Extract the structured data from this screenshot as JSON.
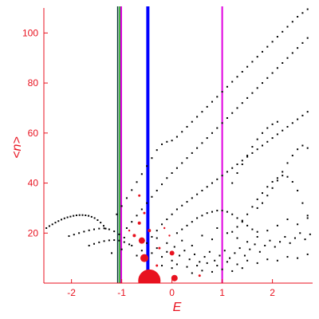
{
  "chart_data": {
    "type": "scatter",
    "xlabel": "E",
    "ylabel": "<n>",
    "xlim": [
      -2.55,
      2.8
    ],
    "ylim": [
      0,
      110
    ],
    "x_ticks": [
      -2,
      -1,
      0,
      1,
      2
    ],
    "y_ticks": [
      20,
      40,
      60,
      80,
      100
    ],
    "x_tick_labels": [
      "-2",
      "-1",
      "0",
      "1",
      "2"
    ],
    "y_tick_labels": [
      "20",
      "40",
      "60",
      "80",
      "100"
    ],
    "grid": false,
    "legend": "none",
    "colors": {
      "axis": "#e8121f",
      "points": "#000000",
      "markers": "#e8121f",
      "line_blue": "#0000ff",
      "line_magenta": "#e000e0",
      "line_green": "#00a000",
      "line_dark": "#003030"
    },
    "vertical_lines": [
      {
        "x": -1.08,
        "color": "#003030",
        "width": 1.5
      },
      {
        "x": -1.04,
        "color": "#00a000",
        "width": 1.5
      },
      {
        "x": -1.01,
        "color": "#e000e0",
        "width": 2
      },
      {
        "x": -0.48,
        "color": "#0000ff",
        "width": 4
      },
      {
        "x": 1.0,
        "color": "#e000e0",
        "width": 2
      }
    ],
    "series": [
      {
        "color": "#000000",
        "points": [
          [
            -2.5,
            22.0
          ],
          [
            -2.44,
            22.8
          ],
          [
            -2.38,
            23.5
          ],
          [
            -2.32,
            24.2
          ],
          [
            -2.26,
            24.8
          ],
          [
            -2.2,
            25.4
          ],
          [
            -2.14,
            25.9
          ],
          [
            -2.08,
            26.3
          ],
          [
            -2.02,
            26.6
          ],
          [
            -1.96,
            26.9
          ],
          [
            -1.9,
            27.1
          ],
          [
            -1.84,
            27.2
          ],
          [
            -1.78,
            27.2
          ],
          [
            -1.72,
            27.1
          ],
          [
            -1.66,
            26.9
          ],
          [
            -1.6,
            26.5
          ],
          [
            -1.54,
            26.0
          ],
          [
            -1.48,
            25.2
          ],
          [
            -1.42,
            24.2
          ],
          [
            -1.36,
            22.9
          ],
          [
            -1.32,
            21.8
          ],
          [
            -2.05,
            18.8
          ],
          [
            -1.95,
            19.4
          ],
          [
            -1.85,
            20.0
          ],
          [
            -1.75,
            20.6
          ],
          [
            -1.65,
            21.1
          ],
          [
            -1.55,
            21.5
          ],
          [
            -1.45,
            21.8
          ],
          [
            -1.35,
            21.9
          ],
          [
            -1.25,
            21.5
          ],
          [
            -1.15,
            20.7
          ],
          [
            -1.05,
            19.5
          ],
          [
            -0.95,
            18.2
          ],
          [
            -1.65,
            15.0
          ],
          [
            -1.55,
            15.7
          ],
          [
            -1.45,
            16.3
          ],
          [
            -1.35,
            16.8
          ],
          [
            -1.25,
            17.1
          ],
          [
            -1.15,
            17.2
          ],
          [
            -1.05,
            17.0
          ],
          [
            -0.95,
            16.4
          ],
          [
            -0.85,
            15.5
          ],
          [
            -1.1,
            27.5
          ],
          [
            -1.0,
            30.8
          ],
          [
            -0.9,
            34.0
          ],
          [
            -0.8,
            37.2
          ],
          [
            -0.7,
            40.4
          ],
          [
            -0.6,
            43.6
          ],
          [
            -0.5,
            46.8
          ],
          [
            -0.4,
            50.0
          ],
          [
            -0.3,
            53.2
          ],
          [
            -0.2,
            55.5
          ],
          [
            -0.1,
            56.5
          ],
          [
            0.0,
            57.0
          ],
          [
            0.1,
            58.5
          ],
          [
            0.2,
            60.5
          ],
          [
            0.3,
            62.5
          ],
          [
            0.4,
            64.5
          ],
          [
            0.5,
            66.5
          ],
          [
            0.6,
            68.5
          ],
          [
            0.7,
            70.5
          ],
          [
            0.8,
            72.5
          ],
          [
            0.9,
            74.5
          ],
          [
            1.0,
            76.5
          ],
          [
            1.1,
            78.5
          ],
          [
            1.2,
            80.5
          ],
          [
            1.3,
            82.5
          ],
          [
            1.4,
            84.5
          ],
          [
            1.5,
            86.5
          ],
          [
            1.6,
            88.5
          ],
          [
            1.7,
            90.5
          ],
          [
            1.8,
            92.5
          ],
          [
            1.9,
            94.5
          ],
          [
            2.0,
            96.5
          ],
          [
            2.1,
            98.5
          ],
          [
            2.2,
            100.5
          ],
          [
            2.3,
            102.5
          ],
          [
            2.4,
            104.5
          ],
          [
            2.5,
            106.5
          ],
          [
            2.6,
            108.0
          ],
          [
            2.7,
            109.5
          ],
          [
            -0.9,
            22.0
          ],
          [
            -0.8,
            24.5
          ],
          [
            -0.7,
            27.0
          ],
          [
            -0.6,
            29.5
          ],
          [
            -0.5,
            32.0
          ],
          [
            -0.4,
            34.5
          ],
          [
            -0.3,
            37.0
          ],
          [
            -0.2,
            39.5
          ],
          [
            -0.1,
            42.0
          ],
          [
            0.0,
            44.0
          ],
          [
            0.1,
            46.0
          ],
          [
            0.2,
            48.0
          ],
          [
            0.3,
            50.0
          ],
          [
            0.4,
            52.0
          ],
          [
            0.5,
            54.0
          ],
          [
            0.6,
            56.0
          ],
          [
            0.7,
            58.0
          ],
          [
            0.8,
            60.0
          ],
          [
            0.9,
            62.0
          ],
          [
            1.0,
            64.0
          ],
          [
            1.1,
            66.0
          ],
          [
            1.2,
            68.0
          ],
          [
            1.3,
            70.0
          ],
          [
            1.4,
            72.0
          ],
          [
            1.5,
            74.0
          ],
          [
            1.6,
            76.0
          ],
          [
            1.7,
            78.0
          ],
          [
            1.8,
            80.0
          ],
          [
            1.9,
            82.0
          ],
          [
            2.0,
            84.0
          ],
          [
            2.1,
            86.0
          ],
          [
            2.2,
            88.0
          ],
          [
            2.3,
            90.0
          ],
          [
            2.4,
            92.0
          ],
          [
            2.5,
            94.0
          ],
          [
            2.6,
            96.0
          ],
          [
            2.7,
            98.0
          ],
          [
            -0.5,
            16.0
          ],
          [
            -0.4,
            18.5
          ],
          [
            -0.3,
            21.0
          ],
          [
            -0.2,
            23.5
          ],
          [
            -0.1,
            25.5
          ],
          [
            0.0,
            27.5
          ],
          [
            0.1,
            29.5
          ],
          [
            0.2,
            31.0
          ],
          [
            0.3,
            32.5
          ],
          [
            0.4,
            34.0
          ],
          [
            0.5,
            35.5
          ],
          [
            0.6,
            37.0
          ],
          [
            0.7,
            38.5
          ],
          [
            0.8,
            40.0
          ],
          [
            0.9,
            41.5
          ],
          [
            1.0,
            43.0
          ],
          [
            1.1,
            44.5
          ],
          [
            1.2,
            46.0
          ],
          [
            1.3,
            47.5
          ],
          [
            1.4,
            49.0
          ],
          [
            1.5,
            50.5
          ],
          [
            1.6,
            52.0
          ],
          [
            1.7,
            53.5
          ],
          [
            1.8,
            55.0
          ],
          [
            1.9,
            56.5
          ],
          [
            2.0,
            58.0
          ],
          [
            2.1,
            59.5
          ],
          [
            2.2,
            61.0
          ],
          [
            2.3,
            62.5
          ],
          [
            2.4,
            64.0
          ],
          [
            2.5,
            65.5
          ],
          [
            2.6,
            67.0
          ],
          [
            2.7,
            68.5
          ],
          [
            0.1,
            20.0
          ],
          [
            0.2,
            21.5
          ],
          [
            0.3,
            23.0
          ],
          [
            0.4,
            24.5
          ],
          [
            0.5,
            26.0
          ],
          [
            0.6,
            27.0
          ],
          [
            0.7,
            28.0
          ],
          [
            0.8,
            28.5
          ],
          [
            0.9,
            29.0
          ],
          [
            1.0,
            29.0
          ],
          [
            1.1,
            28.5
          ],
          [
            1.2,
            27.5
          ],
          [
            1.3,
            26.0
          ],
          [
            1.4,
            24.5
          ],
          [
            1.5,
            23.0
          ],
          [
            1.6,
            21.5
          ],
          [
            1.7,
            20.5
          ],
          [
            1.2,
            20.5
          ],
          [
            1.3,
            22.5
          ],
          [
            1.4,
            25.0
          ],
          [
            1.5,
            27.5
          ],
          [
            1.6,
            30.5
          ],
          [
            1.7,
            33.5
          ],
          [
            1.8,
            36.0
          ],
          [
            1.9,
            38.5
          ],
          [
            2.0,
            40.5
          ],
          [
            2.1,
            42.0
          ],
          [
            2.2,
            43.0
          ],
          [
            2.3,
            42.5
          ],
          [
            2.4,
            40.5
          ],
          [
            2.5,
            37.0
          ],
          [
            2.6,
            32.0
          ],
          [
            2.7,
            27.0
          ],
          [
            1.7,
            30.0
          ],
          [
            1.8,
            32.0
          ],
          [
            1.9,
            35.0
          ],
          [
            2.0,
            38.0
          ],
          [
            2.1,
            41.0
          ],
          [
            2.2,
            44.5
          ],
          [
            2.3,
            48.0
          ],
          [
            2.4,
            51.0
          ],
          [
            2.5,
            53.5
          ],
          [
            2.6,
            55.0
          ],
          [
            2.7,
            54.0
          ],
          [
            1.2,
            40.0
          ],
          [
            1.3,
            44.0
          ],
          [
            1.4,
            47.5
          ],
          [
            1.5,
            51.0
          ],
          [
            1.6,
            54.5
          ],
          [
            1.7,
            57.5
          ],
          [
            1.8,
            60.0
          ],
          [
            1.9,
            62.0
          ],
          [
            2.0,
            63.5
          ],
          [
            2.1,
            64.5
          ],
          [
            -1.2,
            12.0
          ],
          [
            -1.0,
            13.5
          ],
          [
            -0.8,
            15.0
          ],
          [
            -0.7,
            11.0
          ],
          [
            -0.6,
            13.0
          ],
          [
            -0.4,
            12.0
          ],
          [
            -0.3,
            14.0
          ],
          [
            -0.2,
            10.5
          ],
          [
            -0.1,
            12.5
          ],
          [
            0.0,
            9.0
          ],
          [
            0.05,
            14.5
          ],
          [
            0.15,
            11.0
          ],
          [
            0.25,
            13.0
          ],
          [
            0.35,
            9.5
          ],
          [
            0.45,
            11.5
          ],
          [
            0.55,
            8.5
          ],
          [
            0.65,
            10.5
          ],
          [
            0.75,
            12.5
          ],
          [
            0.85,
            9.0
          ],
          [
            0.95,
            11.0
          ],
          [
            1.05,
            13.0
          ],
          [
            1.15,
            10.0
          ],
          [
            1.25,
            12.0
          ],
          [
            1.35,
            14.0
          ],
          [
            1.45,
            11.0
          ],
          [
            1.55,
            13.5
          ],
          [
            1.65,
            15.5
          ],
          [
            1.75,
            12.5
          ],
          [
            1.85,
            15.0
          ],
          [
            1.95,
            17.0
          ],
          [
            2.05,
            14.5
          ],
          [
            2.15,
            16.5
          ],
          [
            2.25,
            18.5
          ],
          [
            2.35,
            16.0
          ],
          [
            2.45,
            18.0
          ],
          [
            2.55,
            20.0
          ],
          [
            2.65,
            17.5
          ],
          [
            2.75,
            19.5
          ],
          [
            -0.3,
            18.0
          ],
          [
            -0.1,
            16.0
          ],
          [
            0.2,
            17.0
          ],
          [
            0.4,
            15.0
          ],
          [
            0.6,
            19.0
          ],
          [
            0.8,
            17.5
          ],
          [
            0.9,
            22.0
          ],
          [
            1.1,
            20.0
          ],
          [
            1.3,
            18.0
          ],
          [
            1.5,
            16.5
          ],
          [
            1.7,
            18.5
          ],
          [
            1.9,
            21.0
          ],
          [
            2.1,
            23.0
          ],
          [
            2.3,
            25.5
          ],
          [
            2.5,
            23.5
          ],
          [
            2.7,
            26.0
          ],
          [
            -0.2,
            7.0
          ],
          [
            0.0,
            6.0
          ],
          [
            0.1,
            7.5
          ],
          [
            0.3,
            6.5
          ],
          [
            0.5,
            7.0
          ],
          [
            0.7,
            8.0
          ],
          [
            0.9,
            7.0
          ],
          [
            1.1,
            8.5
          ],
          [
            1.3,
            7.5
          ],
          [
            1.5,
            9.0
          ],
          [
            1.7,
            8.0
          ],
          [
            1.9,
            9.5
          ],
          [
            2.1,
            9.0
          ],
          [
            2.3,
            10.5
          ],
          [
            2.5,
            10.0
          ],
          [
            2.7,
            11.5
          ],
          [
            0.4,
            4.0
          ],
          [
            0.6,
            5.0
          ],
          [
            0.8,
            4.5
          ],
          [
            1.0,
            5.5
          ],
          [
            1.2,
            4.8
          ],
          [
            1.4,
            6.0
          ]
        ]
      }
    ],
    "markers": [
      {
        "x": -0.45,
        "y": 1,
        "size": 14
      },
      {
        "x": -0.55,
        "y": 10,
        "size": 5
      },
      {
        "x": -0.6,
        "y": 17,
        "size": 4
      },
      {
        "x": 0.05,
        "y": 2,
        "size": 4
      },
      {
        "x": 0.0,
        "y": 12,
        "size": 3
      },
      {
        "x": -0.75,
        "y": 19,
        "size": 2
      },
      {
        "x": -0.65,
        "y": 24,
        "size": 2
      },
      {
        "x": -0.45,
        "y": 21,
        "size": 2
      },
      {
        "x": -0.55,
        "y": 28,
        "size": 1.5
      },
      {
        "x": -0.65,
        "y": 35,
        "size": 1.5
      },
      {
        "x": -0.25,
        "y": 14,
        "size": 1.5
      },
      {
        "x": 0.55,
        "y": 3,
        "size": 1.5
      },
      {
        "x": -0.3,
        "y": 7,
        "size": 1.5
      },
      {
        "x": -0.15,
        "y": 22,
        "size": 1.2
      },
      {
        "x": -0.05,
        "y": 19,
        "size": 1.2
      },
      {
        "x": -0.85,
        "y": 21,
        "size": 1.2
      }
    ]
  }
}
